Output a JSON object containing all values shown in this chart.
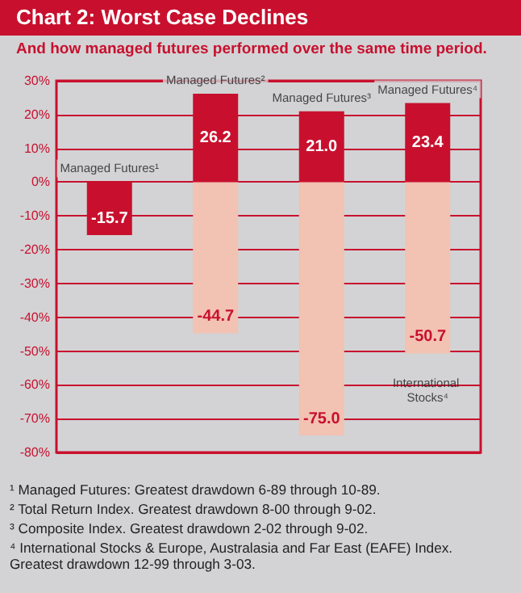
{
  "chart_data": {
    "type": "bar",
    "title": "Chart 2: Worst Case Declines",
    "subtitle": "And how managed futures performed over the same time period.",
    "categories": [
      null,
      null,
      null,
      null
    ],
    "stacked": true,
    "series": [
      {
        "color": "#c8102e",
        "values": [
          -15.7,
          26.2,
          21.0,
          23.4
        ],
        "value_labels": [
          "-15.7",
          "26.2",
          "21.0",
          "23.4"
        ]
      },
      {
        "color": "#f2c2b3",
        "values": [
          null,
          -44.7,
          -75.0,
          -50.7
        ],
        "value_labels": [
          null,
          "-44.7",
          "-75.0",
          "-50.7"
        ]
      }
    ],
    "ylim": [
      -80,
      30
    ],
    "yticks": [
      {
        "value": 30,
        "label": "30%"
      },
      {
        "value": 20,
        "label": "20%"
      },
      {
        "value": 10,
        "label": "10%"
      },
      {
        "value": 0,
        "label": "0%"
      },
      {
        "value": -10,
        "label": "-10%"
      },
      {
        "value": -20,
        "label": "-20%"
      },
      {
        "value": -30,
        "label": "-30%"
      },
      {
        "value": -40,
        "label": "-40%"
      },
      {
        "value": -50,
        "label": "-50%"
      },
      {
        "value": -60,
        "label": "-60%"
      },
      {
        "value": -70,
        "label": "-70%"
      },
      {
        "value": -80,
        "label": "-80%"
      }
    ],
    "grid": "y",
    "annotations": [
      {
        "text": "Managed Futures¹",
        "y": 0
      },
      {
        "text": "Managed Futures²",
        "y": 26.2
      },
      {
        "text": "Managed Futures³",
        "y": 21.0
      },
      {
        "text": "Managed Futures⁴",
        "y": 23.4
      },
      {
        "text": "International Stocks⁴",
        "y": -50.7
      },
      "¹ Managed Futures: Greatest drawdown 6-89 through 10-89.",
      "² Total Return Index. Greatest drawdown 8-00 through 9-02.",
      "³ Composite Index. Greatest drawdown 2-02 through 9-02.",
      "⁴ International Stocks & Europe, Australasia and Far East (EAFE) Index. Greatest drawdown 12-99 through 3-03."
    ]
  }
}
